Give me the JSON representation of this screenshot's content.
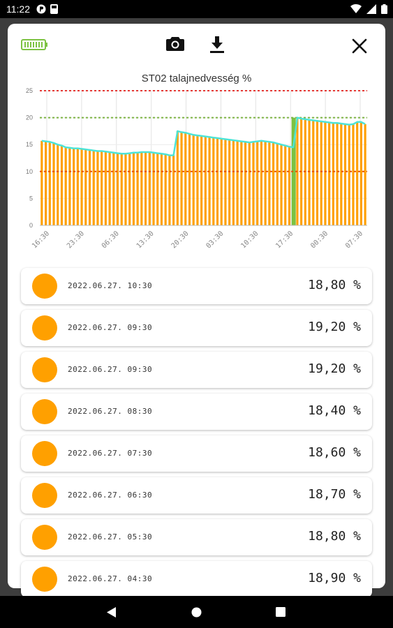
{
  "status_bar": {
    "time": "11:22"
  },
  "toolbar": {
    "battery_color": "#7CC242",
    "icons": [
      "battery-icon",
      "camera-icon",
      "download-icon",
      "close-icon"
    ]
  },
  "chart_data": {
    "type": "bar",
    "title": "ST02 talajnedvesség %",
    "ylim": [
      0,
      25
    ],
    "y_ticks": [
      "0",
      "5",
      "10",
      "15",
      "20",
      "25"
    ],
    "x_ticks": [
      "16:30",
      "23:30",
      "06:30",
      "13:30",
      "20:30",
      "03:30",
      "10:30",
      "17:30",
      "00:30",
      "07:30"
    ],
    "values": [
      15.7,
      15.6,
      15.5,
      15.3,
      15.0,
      14.8,
      14.5,
      14.4,
      14.3,
      14.3,
      14.2,
      14.1,
      14.0,
      13.9,
      13.8,
      13.8,
      13.7,
      13.6,
      13.5,
      13.4,
      13.3,
      13.3,
      13.4,
      13.5,
      13.5,
      13.6,
      13.6,
      13.6,
      13.5,
      13.4,
      13.3,
      13.2,
      13.0,
      13.0,
      17.5,
      17.3,
      17.2,
      17.0,
      16.8,
      16.7,
      16.6,
      16.5,
      16.4,
      16.3,
      16.2,
      16.1,
      16.0,
      15.9,
      15.8,
      15.7,
      15.6,
      15.5,
      15.4,
      15.5,
      15.6,
      15.7,
      15.6,
      15.5,
      15.4,
      15.2,
      15.0,
      14.8,
      14.6,
      14.5,
      20.0,
      19.8,
      19.7,
      19.6,
      19.5,
      19.4,
      19.3,
      19.2,
      19.1,
      19.0,
      19.0,
      18.9,
      18.8,
      18.7,
      18.8,
      19.2,
      19.2,
      18.8
    ],
    "highlight_index": 63,
    "threshold_lines": [
      {
        "value": 25,
        "color": "#E53935"
      },
      {
        "value": 20,
        "color": "#7CB342"
      },
      {
        "value": 10,
        "color": "#E65100"
      }
    ],
    "colors": {
      "bar": "#FFA000",
      "line": "#4DE3D6",
      "highlight": "#7CC242"
    },
    "grid": true
  },
  "readings": [
    {
      "date": "2022.06.27. 10:30",
      "value": "18,80 %"
    },
    {
      "date": "2022.06.27. 09:30",
      "value": "19,20 %"
    },
    {
      "date": "2022.06.27. 09:30",
      "value": "19,20 %"
    },
    {
      "date": "2022.06.27. 08:30",
      "value": "18,40 %"
    },
    {
      "date": "2022.06.27. 07:30",
      "value": "18,60 %"
    },
    {
      "date": "2022.06.27. 06:30",
      "value": "18,70 %"
    },
    {
      "date": "2022.06.27. 05:30",
      "value": "18,80 %"
    },
    {
      "date": "2022.06.27. 04:30",
      "value": "18,90 %"
    }
  ],
  "reading_dot_color": "#FFA000"
}
